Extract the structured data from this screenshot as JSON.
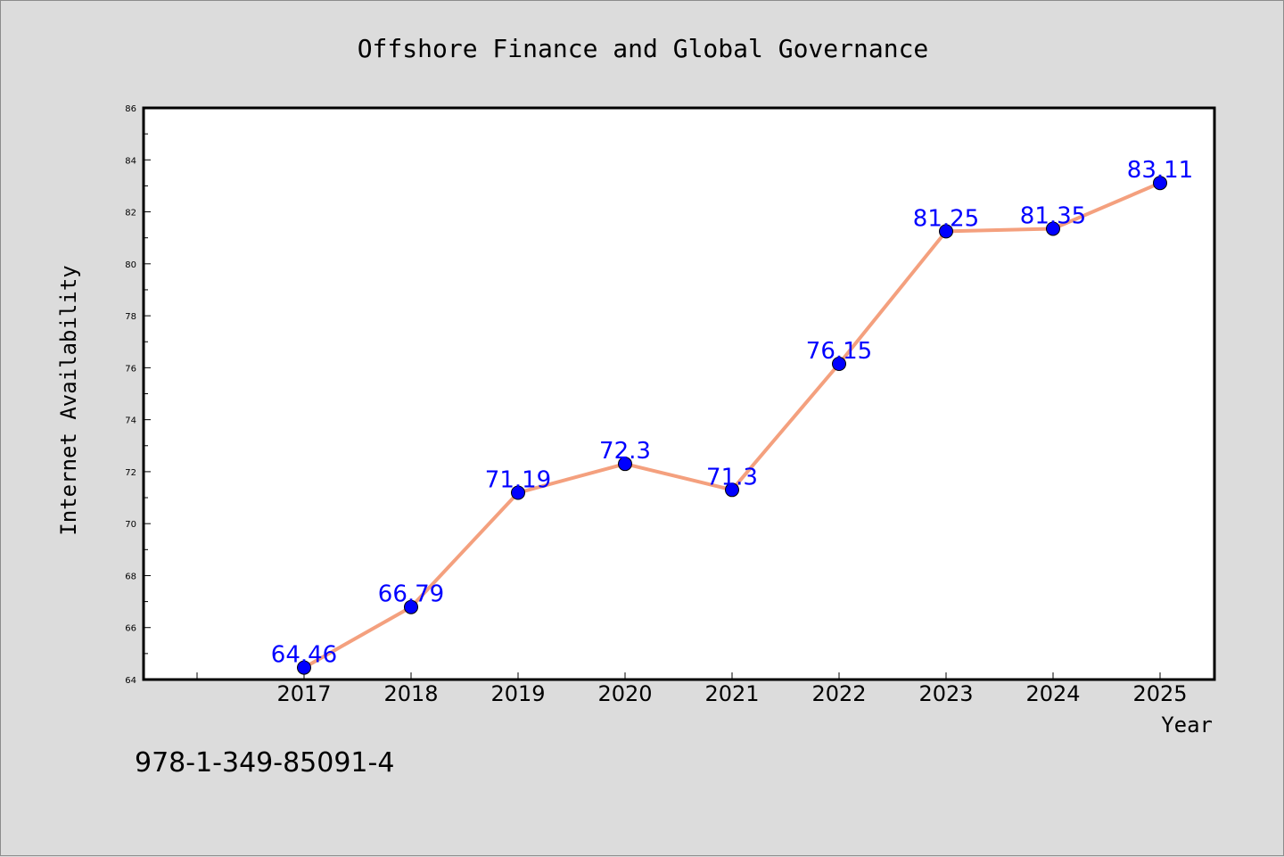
{
  "chart_data": {
    "type": "line",
    "title": "Offshore Finance and Global Governance",
    "xlabel": "Year",
    "ylabel": "Internet Availability",
    "categories": [
      "2017",
      "2018",
      "2019",
      "2020",
      "2021",
      "2022",
      "2023",
      "2024",
      "2025"
    ],
    "series": [
      {
        "values": [
          64.46,
          66.79,
          71.19,
          72.3,
          71.3,
          76.15,
          81.25,
          81.35,
          83.11
        ],
        "labels": [
          "64.46",
          "66.79",
          "71.19",
          "72.3",
          "71.3",
          "76.15",
          "81.25",
          "81.35",
          "83.11"
        ]
      }
    ],
    "ylim": [
      64,
      86
    ],
    "y_ticks": [
      "64",
      "66",
      "68",
      "70",
      "72",
      "74",
      "76",
      "78",
      "80",
      "82",
      "84",
      "86"
    ],
    "grid": false,
    "legend": "none",
    "annotation": "978-1-349-85091-4",
    "colors": {
      "line": "#f4a07e",
      "marker": "#0000ff",
      "label": "#0000ff",
      "background": "#dcdcdc",
      "plot_background": "#ffffff"
    }
  }
}
